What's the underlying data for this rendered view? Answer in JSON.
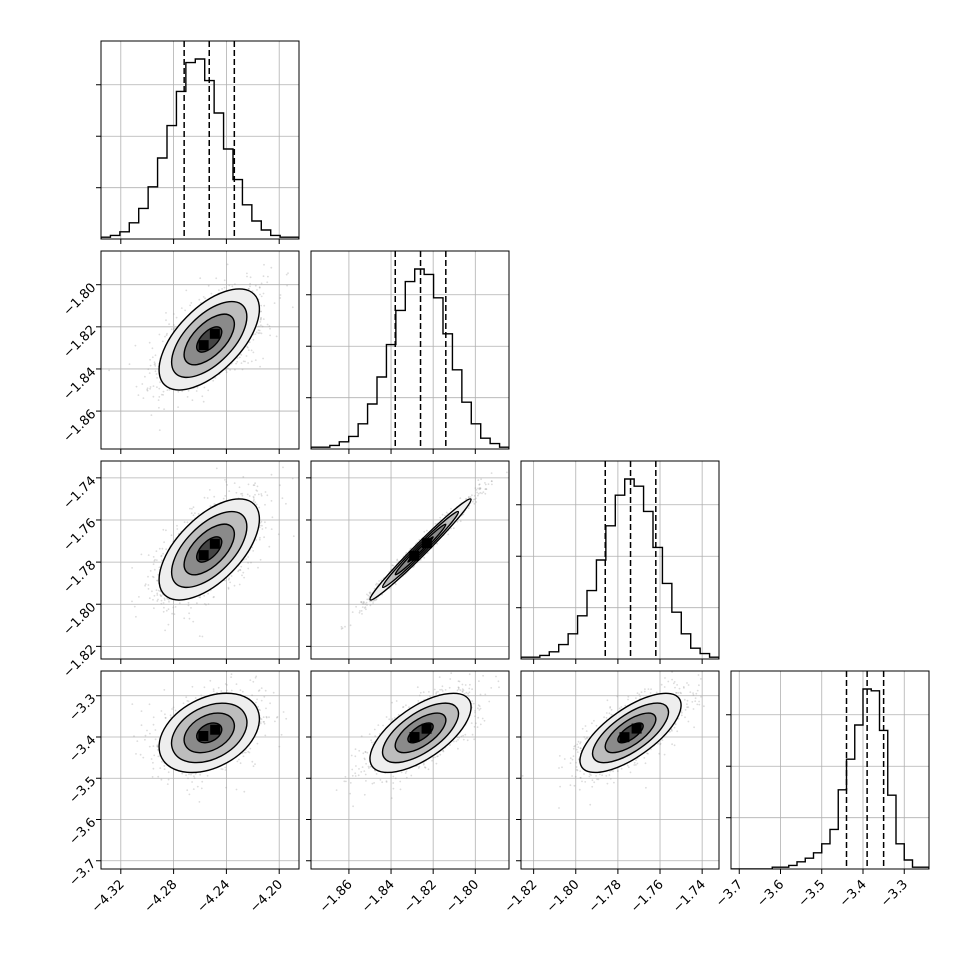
{
  "chart_data": {
    "type": "corner",
    "title": "",
    "parameters": [
      "",
      "",
      "",
      ""
    ],
    "colors": {
      "hist": "#000000",
      "scatter": "#9a9a9a",
      "grid": "#b0b0b0",
      "contour": "#000000"
    },
    "grid": true,
    "x_ranges": [
      [
        -4.335,
        -4.185
      ],
      [
        -1.878,
        -1.784
      ],
      [
        -1.826,
        -1.732
      ],
      [
        -3.72,
        -3.24
      ]
    ],
    "y_ranges": [
      null,
      [
        -1.878,
        -1.784
      ],
      [
        -1.826,
        -1.732
      ],
      [
        -3.72,
        -3.24
      ]
    ],
    "x_ticks": [
      [
        "−4.32",
        "−4.28",
        "−4.24",
        "−4.20"
      ],
      [
        "−1.86",
        "−1.84",
        "−1.82",
        "−1.80"
      ],
      [
        "−1.82",
        "−1.80",
        "−1.78",
        "−1.76",
        "−1.74"
      ],
      [
        "−3.7",
        "−3.6",
        "−3.5",
        "−3.4",
        "−3.3"
      ]
    ],
    "x_tick_values": [
      [
        -4.32,
        -4.28,
        -4.24,
        -4.2
      ],
      [
        -1.86,
        -1.84,
        -1.82,
        -1.8
      ],
      [
        -1.82,
        -1.8,
        -1.78,
        -1.76,
        -1.74
      ],
      [
        -3.7,
        -3.6,
        -3.5,
        -3.4,
        -3.3
      ]
    ],
    "y_ticks": [
      [],
      [
        "−1.80",
        "−1.82",
        "−1.84",
        "−1.86"
      ],
      [
        "−1.74",
        "−1.76",
        "−1.78",
        "−1.80",
        "−1.82"
      ],
      [
        "−3.3",
        "−3.4",
        "−3.5",
        "−3.6",
        "−3.7"
      ]
    ],
    "y_tick_values": [
      [],
      [
        -1.8,
        -1.82,
        -1.84,
        -1.86
      ],
      [
        -1.74,
        -1.76,
        -1.78,
        -1.8,
        -1.82
      ],
      [
        -3.3,
        -3.4,
        -3.5,
        -3.6,
        -3.7
      ]
    ],
    "means": [
      -4.253,
      -1.826,
      -1.774,
      -3.39
    ],
    "stds": [
      0.019,
      0.012,
      0.012,
      0.048
    ],
    "correlations": {
      "1-0": 0.6,
      "2-0": 0.6,
      "3-0": 0.35,
      "2-1": 0.985,
      "3-1": 0.65,
      "3-2": 0.7
    },
    "quantiles": [
      [
        -4.272,
        -4.253,
        -4.234
      ],
      [
        -1.838,
        -1.826,
        -1.814
      ],
      [
        -1.786,
        -1.774,
        -1.762
      ],
      [
        -3.44,
        -3.39,
        -3.35
      ]
    ],
    "histograms": [
      {
        "range": [
          -4.335,
          -4.185
        ],
        "counts": [
          1,
          2,
          4,
          9,
          17,
          29,
          45,
          63,
          82,
          98,
          100,
          88,
          70,
          50,
          33,
          19,
          10,
          5,
          2,
          1,
          1
        ]
      },
      {
        "range": [
          -1.878,
          -1.784
        ],
        "counts": [
          1,
          1,
          2,
          4,
          7,
          14,
          25,
          40,
          58,
          77,
          93,
          100,
          97,
          84,
          64,
          44,
          26,
          14,
          6,
          3,
          1
        ]
      },
      {
        "range": [
          -1.826,
          -1.732
        ],
        "counts": [
          1,
          1,
          2,
          4,
          8,
          14,
          24,
          38,
          55,
          74,
          91,
          100,
          96,
          82,
          62,
          42,
          26,
          14,
          6,
          3,
          1
        ]
      },
      {
        "range": [
          -3.72,
          -3.24
        ],
        "counts": [
          0,
          0,
          0,
          0,
          0,
          1,
          1,
          2,
          4,
          6,
          9,
          14,
          22,
          44,
          61,
          80,
          100,
          99,
          77,
          41,
          14,
          5,
          1,
          1
        ]
      }
    ]
  }
}
